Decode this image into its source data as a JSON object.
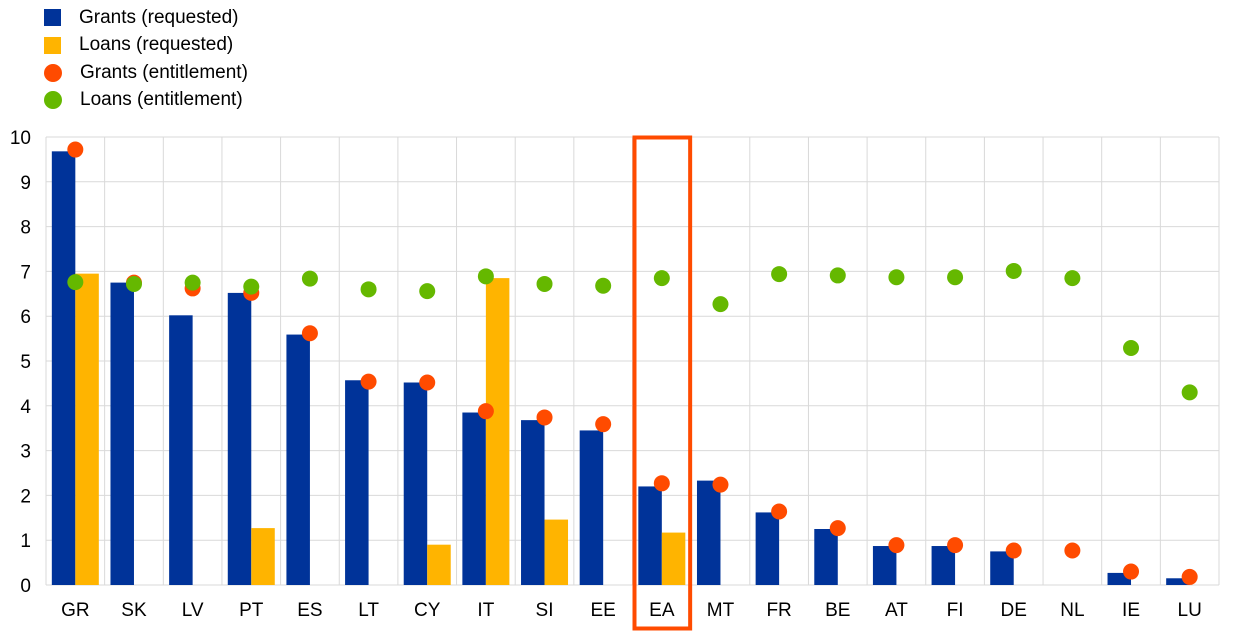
{
  "chart_data": {
    "type": "bar",
    "categories": [
      "GR",
      "SK",
      "LV",
      "PT",
      "ES",
      "LT",
      "CY",
      "IT",
      "SI",
      "EE",
      "EA",
      "MT",
      "FR",
      "BE",
      "AT",
      "FI",
      "DE",
      "NL",
      "IE",
      "LU"
    ],
    "highlight_category": "EA",
    "ylim": [
      0,
      10
    ],
    "yticks": [
      "0",
      "1",
      "2",
      "3",
      "4",
      "5",
      "6",
      "7",
      "8",
      "9",
      "10"
    ],
    "grid": true,
    "legend_position": "top-left",
    "colors": {
      "grants_requested": "#003399",
      "loans_requested": "#ffb400",
      "grants_entitlement": "#ff4b00",
      "loans_entitlement": "#65b800",
      "highlight": "#ff4b00",
      "grid": "#d9d9d9"
    },
    "series": [
      {
        "name": "Grants (requested)",
        "kind": "bar",
        "color": "#003399",
        "values": [
          9.68,
          6.75,
          6.02,
          6.52,
          5.59,
          4.57,
          4.52,
          3.85,
          3.68,
          3.45,
          2.2,
          2.33,
          1.62,
          1.25,
          0.87,
          0.87,
          0.75,
          null,
          0.27,
          0.15
        ]
      },
      {
        "name": "Loans (requested)",
        "kind": "bar",
        "color": "#ffb400",
        "values": [
          6.95,
          null,
          null,
          1.27,
          null,
          null,
          0.9,
          6.85,
          1.46,
          null,
          1.17,
          null,
          null,
          null,
          null,
          null,
          null,
          null,
          null,
          null
        ]
      },
      {
        "name": "Grants (entitlement)",
        "kind": "dot",
        "color": "#ff4b00",
        "values": [
          9.72,
          6.75,
          6.62,
          6.52,
          5.62,
          4.54,
          4.52,
          3.88,
          3.74,
          3.59,
          2.27,
          2.24,
          1.64,
          1.27,
          0.89,
          0.89,
          0.77,
          0.77,
          0.3,
          0.18
        ]
      },
      {
        "name": "Loans (entitlement)",
        "kind": "dot",
        "color": "#65b800",
        "values": [
          6.76,
          6.72,
          6.75,
          6.66,
          6.84,
          6.6,
          6.56,
          6.89,
          6.72,
          6.68,
          6.85,
          6.27,
          6.94,
          6.91,
          6.87,
          6.87,
          7.01,
          6.85,
          5.29,
          4.3
        ]
      }
    ]
  }
}
